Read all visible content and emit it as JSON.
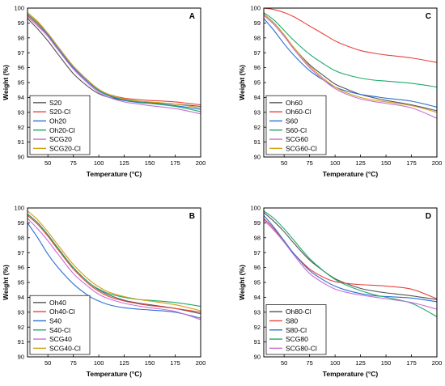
{
  "colors": {
    "black": "#555555",
    "red": "#e8433e",
    "blue": "#2a6fd1",
    "green": "#1faa6a",
    "purple": "#c86fd6",
    "gold": "#d4a017"
  },
  "chart_data": [
    {
      "type": "line",
      "panel": "A",
      "xlabel": "Temperature (°C)",
      "ylabel": "Weight (%)",
      "xlim": [
        30,
        200
      ],
      "ylim": [
        90,
        100
      ],
      "xticks": [
        50,
        75,
        100,
        125,
        150,
        175,
        200
      ],
      "yticks": [
        90,
        91,
        92,
        93,
        94,
        95,
        96,
        97,
        98,
        99,
        100
      ],
      "legend_position": "bottom-left",
      "series": [
        {
          "name": "S20",
          "color": "black",
          "x": [
            30,
            40,
            50,
            60,
            75,
            90,
            100,
            110,
            125,
            140,
            150,
            175,
            200
          ],
          "y": [
            99.3,
            98.6,
            97.8,
            96.9,
            95.6,
            94.7,
            94.25,
            94.0,
            93.8,
            93.7,
            93.65,
            93.55,
            93.4
          ]
        },
        {
          "name": "S20-Cl",
          "color": "red",
          "x": [
            30,
            40,
            50,
            60,
            75,
            90,
            100,
            110,
            125,
            140,
            150,
            175,
            200
          ],
          "y": [
            99.5,
            98.9,
            98.1,
            97.2,
            96.0,
            95.0,
            94.5,
            94.2,
            93.95,
            93.85,
            93.8,
            93.7,
            93.5
          ]
        },
        {
          "name": "Oh20",
          "color": "blue",
          "x": [
            30,
            40,
            50,
            60,
            75,
            90,
            100,
            110,
            125,
            140,
            150,
            175,
            200
          ],
          "y": [
            99.6,
            99.0,
            98.2,
            97.3,
            96.0,
            95.0,
            94.45,
            94.1,
            93.8,
            93.65,
            93.6,
            93.45,
            93.2
          ]
        },
        {
          "name": "Oh20-Cl",
          "color": "green",
          "x": [
            30,
            40,
            50,
            60,
            75,
            90,
            100,
            110,
            125,
            140,
            150,
            175,
            200
          ],
          "y": [
            99.6,
            99.0,
            98.3,
            97.4,
            96.1,
            95.1,
            94.5,
            94.15,
            93.85,
            93.7,
            93.6,
            93.4,
            93.05
          ]
        },
        {
          "name": "SCG20",
          "color": "purple",
          "x": [
            30,
            40,
            50,
            60,
            75,
            90,
            100,
            110,
            125,
            140,
            150,
            175,
            200
          ],
          "y": [
            99.4,
            98.8,
            98.1,
            97.2,
            95.9,
            94.9,
            94.35,
            94.0,
            93.7,
            93.55,
            93.45,
            93.25,
            92.9
          ]
        },
        {
          "name": "SCG20-Cl",
          "color": "gold",
          "x": [
            30,
            40,
            50,
            60,
            75,
            90,
            100,
            110,
            125,
            140,
            150,
            175,
            200
          ],
          "y": [
            99.7,
            99.1,
            98.3,
            97.4,
            96.1,
            95.1,
            94.55,
            94.2,
            93.9,
            93.75,
            93.7,
            93.55,
            93.3
          ]
        }
      ]
    },
    {
      "type": "line",
      "panel": "C",
      "xlabel": "Temperature (°C)",
      "ylabel": "Weight (%)",
      "xlim": [
        30,
        200
      ],
      "ylim": [
        90,
        100
      ],
      "xticks": [
        50,
        75,
        100,
        125,
        150,
        175,
        200
      ],
      "yticks": [
        90,
        91,
        92,
        93,
        94,
        95,
        96,
        97,
        98,
        99,
        100
      ],
      "legend_position": "bottom-left",
      "series": [
        {
          "name": "Oh60",
          "color": "black",
          "x": [
            30,
            40,
            50,
            60,
            75,
            90,
            100,
            110,
            125,
            140,
            150,
            175,
            200
          ],
          "y": [
            99.6,
            99.0,
            98.2,
            97.3,
            96.2,
            95.4,
            94.9,
            94.6,
            94.2,
            93.95,
            93.8,
            93.5,
            93.1
          ]
        },
        {
          "name": "Oh60-Cl",
          "color": "red",
          "x": [
            30,
            40,
            50,
            60,
            75,
            90,
            100,
            110,
            125,
            140,
            150,
            175,
            200
          ],
          "y": [
            100.0,
            99.9,
            99.7,
            99.4,
            98.8,
            98.2,
            97.8,
            97.5,
            97.15,
            96.95,
            96.85,
            96.65,
            96.35
          ]
        },
        {
          "name": "S60",
          "color": "blue",
          "x": [
            30,
            40,
            50,
            60,
            75,
            90,
            100,
            110,
            125,
            140,
            150,
            175,
            200
          ],
          "y": [
            99.3,
            98.5,
            97.6,
            96.8,
            95.8,
            95.1,
            94.7,
            94.45,
            94.2,
            94.05,
            93.95,
            93.75,
            93.35
          ]
        },
        {
          "name": "S60-Cl",
          "color": "green",
          "x": [
            30,
            40,
            50,
            60,
            75,
            90,
            100,
            110,
            125,
            140,
            150,
            175,
            200
          ],
          "y": [
            99.7,
            99.2,
            98.5,
            97.8,
            96.9,
            96.2,
            95.8,
            95.55,
            95.3,
            95.15,
            95.1,
            94.95,
            94.7
          ]
        },
        {
          "name": "SCG60",
          "color": "purple",
          "x": [
            30,
            40,
            50,
            60,
            75,
            90,
            100,
            110,
            125,
            140,
            150,
            175,
            200
          ],
          "y": [
            99.5,
            98.9,
            98.1,
            97.2,
            96.0,
            95.1,
            94.6,
            94.25,
            93.9,
            93.7,
            93.6,
            93.3,
            92.6
          ]
        },
        {
          "name": "SCG60-Cl",
          "color": "gold",
          "x": [
            30,
            40,
            50,
            60,
            75,
            90,
            100,
            110,
            125,
            140,
            150,
            175,
            200
          ],
          "y": [
            99.6,
            99.0,
            98.2,
            97.3,
            96.1,
            95.2,
            94.7,
            94.35,
            94.0,
            93.8,
            93.7,
            93.45,
            93.0
          ]
        }
      ]
    },
    {
      "type": "line",
      "panel": "B",
      "xlabel": "Temperature (°C)",
      "ylabel": "Weight (%)",
      "xlim": [
        30,
        200
      ],
      "ylim": [
        90,
        100
      ],
      "xticks": [
        50,
        75,
        100,
        125,
        150,
        175,
        200
      ],
      "yticks": [
        90,
        91,
        92,
        93,
        94,
        95,
        96,
        97,
        98,
        99,
        100
      ],
      "legend_position": "bottom-left",
      "series": [
        {
          "name": "Oh40",
          "color": "black",
          "x": [
            30,
            40,
            50,
            60,
            75,
            90,
            100,
            110,
            125,
            140,
            150,
            175,
            200
          ],
          "y": [
            99.6,
            99.0,
            98.2,
            97.3,
            96.0,
            95.0,
            94.5,
            94.15,
            93.8,
            93.6,
            93.5,
            93.25,
            92.9
          ]
        },
        {
          "name": "Oh40-Cl",
          "color": "red",
          "x": [
            30,
            40,
            50,
            60,
            75,
            90,
            100,
            110,
            125,
            140,
            150,
            175,
            200
          ],
          "y": [
            99.5,
            98.9,
            98.1,
            97.2,
            95.9,
            94.9,
            94.4,
            94.05,
            93.75,
            93.55,
            93.45,
            93.25,
            93.0
          ]
        },
        {
          "name": "S40",
          "color": "blue",
          "x": [
            30,
            40,
            50,
            60,
            75,
            90,
            100,
            110,
            125,
            140,
            150,
            175,
            200
          ],
          "y": [
            99.0,
            98.0,
            96.9,
            96.0,
            94.9,
            94.1,
            93.75,
            93.5,
            93.3,
            93.2,
            93.15,
            93.0,
            92.6
          ]
        },
        {
          "name": "S40-Cl",
          "color": "green",
          "x": [
            30,
            40,
            50,
            60,
            75,
            90,
            100,
            110,
            125,
            140,
            150,
            175,
            200
          ],
          "y": [
            99.6,
            99.0,
            98.2,
            97.3,
            96.0,
            95.0,
            94.55,
            94.25,
            94.0,
            93.85,
            93.8,
            93.65,
            93.4
          ]
        },
        {
          "name": "SCG40",
          "color": "purple",
          "x": [
            30,
            40,
            50,
            60,
            75,
            90,
            100,
            110,
            125,
            140,
            150,
            175,
            200
          ],
          "y": [
            99.3,
            98.6,
            97.8,
            96.9,
            95.6,
            94.7,
            94.2,
            93.9,
            93.6,
            93.4,
            93.3,
            93.05,
            92.5
          ]
        },
        {
          "name": "SCG40-Cl",
          "color": "gold",
          "x": [
            30,
            40,
            50,
            60,
            75,
            90,
            100,
            110,
            125,
            140,
            150,
            175,
            200
          ],
          "y": [
            99.8,
            99.2,
            98.4,
            97.5,
            96.2,
            95.2,
            94.7,
            94.35,
            94.05,
            93.85,
            93.75,
            93.5,
            93.1
          ]
        }
      ]
    },
    {
      "type": "line",
      "panel": "D",
      "xlabel": "Temperature (°C)",
      "ylabel": "Weight (%)",
      "xlim": [
        30,
        200
      ],
      "ylim": [
        90,
        100
      ],
      "xticks": [
        50,
        75,
        100,
        125,
        150,
        175,
        200
      ],
      "yticks": [
        90,
        91,
        92,
        93,
        94,
        95,
        96,
        97,
        98,
        99,
        100
      ],
      "legend_position": "bottom-left",
      "series": [
        {
          "name": "Oh80-Cl",
          "color": "black",
          "x": [
            30,
            40,
            50,
            60,
            75,
            90,
            100,
            110,
            125,
            140,
            150,
            175,
            200
          ],
          "y": [
            99.7,
            99.1,
            98.4,
            97.6,
            96.5,
            95.7,
            95.25,
            94.95,
            94.6,
            94.4,
            94.3,
            94.1,
            93.85
          ]
        },
        {
          "name": "S80",
          "color": "red",
          "x": [
            30,
            40,
            50,
            60,
            75,
            90,
            100,
            110,
            125,
            140,
            150,
            175,
            200
          ],
          "y": [
            99.3,
            98.6,
            97.7,
            96.9,
            95.9,
            95.3,
            95.05,
            94.95,
            94.85,
            94.8,
            94.75,
            94.55,
            93.9
          ]
        },
        {
          "name": "S80-Cl",
          "color": "blue",
          "x": [
            30,
            40,
            50,
            60,
            75,
            90,
            100,
            110,
            125,
            140,
            150,
            175,
            200
          ],
          "y": [
            99.5,
            98.7,
            97.8,
            96.9,
            95.8,
            95.1,
            94.75,
            94.5,
            94.25,
            94.1,
            94.05,
            93.95,
            93.7
          ]
        },
        {
          "name": "SCG80",
          "color": "green",
          "x": [
            30,
            40,
            50,
            60,
            75,
            90,
            100,
            110,
            125,
            140,
            150,
            175,
            200
          ],
          "y": [
            99.8,
            99.3,
            98.6,
            97.8,
            96.6,
            95.7,
            95.2,
            94.85,
            94.45,
            94.15,
            94.0,
            93.6,
            92.7
          ]
        },
        {
          "name": "SCG80-Cl",
          "color": "purple",
          "x": [
            30,
            40,
            50,
            60,
            75,
            90,
            100,
            110,
            125,
            140,
            150,
            175,
            200
          ],
          "y": [
            99.2,
            98.5,
            97.7,
            96.8,
            95.6,
            94.9,
            94.55,
            94.35,
            94.15,
            94.0,
            93.9,
            93.65,
            93.2
          ]
        }
      ]
    }
  ]
}
